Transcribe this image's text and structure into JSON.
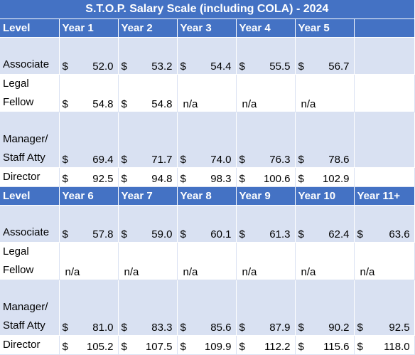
{
  "title": "S.T.O.P. Salary Scale  (including COLA) - 2024",
  "currency": "$",
  "table1": {
    "headers": [
      "Level",
      "Year 1",
      "Year 2",
      "Year 3",
      "Year 4",
      "Year 5",
      ""
    ],
    "rows": [
      {
        "level_lines": [
          "Associate"
        ],
        "values": [
          "52.0",
          "53.2",
          "54.4",
          "55.5",
          "56.7",
          ""
        ]
      },
      {
        "level_lines": [
          "Legal",
          "Fellow"
        ],
        "values": [
          "54.8",
          "54.8",
          "n/a",
          "n/a",
          "n/a",
          ""
        ]
      },
      {
        "level_lines": [
          "Manager/",
          "Staff Atty"
        ],
        "values": [
          "69.4",
          "71.7",
          "74.0",
          "76.3",
          "78.6",
          ""
        ]
      },
      {
        "level_lines": [
          "Director"
        ],
        "values": [
          "92.5",
          "94.8",
          "98.3",
          "100.6",
          "102.9",
          ""
        ]
      }
    ]
  },
  "table2": {
    "headers": [
      "Level",
      "Year 6",
      "Year 7",
      "Year 8",
      "Year 9",
      "Year 10",
      "Year 11+"
    ],
    "rows": [
      {
        "level_lines": [
          "Associate"
        ],
        "values": [
          "57.8",
          "59.0",
          "60.1",
          "61.3",
          "62.4",
          "63.6"
        ]
      },
      {
        "level_lines": [
          "Legal",
          "Fellow"
        ],
        "values": [
          "n/a",
          "n/a",
          "n/a",
          "n/a",
          "n/a",
          "n/a"
        ]
      },
      {
        "level_lines": [
          "Manager/",
          "Staff Atty"
        ],
        "values": [
          "81.0",
          "83.3",
          "85.6",
          "87.9",
          "90.2",
          "92.5"
        ]
      },
      {
        "level_lines": [
          "Director"
        ],
        "values": [
          "105.2",
          "107.5",
          "109.9",
          "112.2",
          "115.6",
          "118.0"
        ]
      }
    ]
  }
}
